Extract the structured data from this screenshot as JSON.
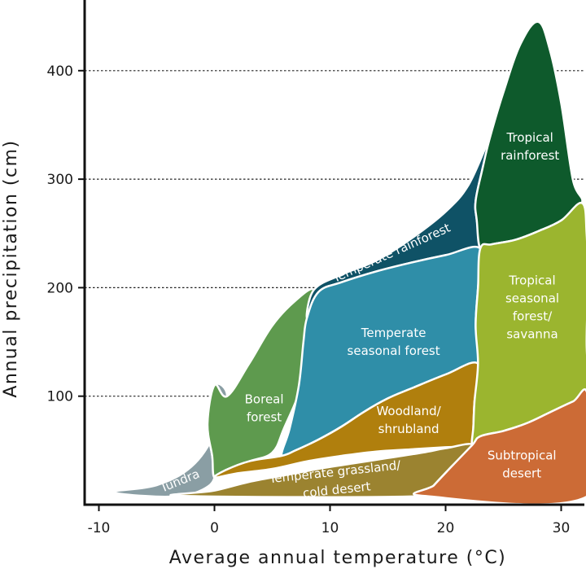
{
  "chart_data": {
    "type": "area",
    "title": "",
    "xlabel": "Average annual temperature (°C)",
    "ylabel": "Annual precipitation (cm)",
    "xlim": [
      -11,
      32
    ],
    "ylim": [
      0,
      460
    ],
    "x_ticks": [
      {
        "value": -10,
        "label": "-10"
      },
      {
        "value": 0,
        "label": "0"
      },
      {
        "value": 10,
        "label": "10"
      },
      {
        "value": 20,
        "label": "20"
      },
      {
        "value": 30,
        "label": "30"
      }
    ],
    "y_ticks": [
      {
        "value": 100,
        "label": "100"
      },
      {
        "value": 200,
        "label": "200"
      },
      {
        "value": 300,
        "label": "300"
      },
      {
        "value": 400,
        "label": "400"
      }
    ],
    "grid": "horizontal dotted at y ticks",
    "regions": [
      {
        "name": "tundra",
        "label": [
          "Tundra"
        ],
        "color": "#8a9ea4",
        "label_pos": [
          -3,
          22
        ],
        "label_rotate": -22,
        "boundary": [
          [
            -8.7,
            12
          ],
          [
            -5,
            18
          ],
          [
            -2,
            35
          ],
          [
            0,
            65
          ],
          [
            1.1,
            100
          ],
          [
            0,
            110
          ],
          [
            -0.6,
            75
          ],
          [
            -0.2,
            45
          ],
          [
            0,
            25
          ],
          [
            -1,
            14
          ],
          [
            -3,
            8
          ],
          [
            -6,
            8
          ],
          [
            -8.7,
            12
          ]
        ]
      },
      {
        "name": "boreal-forest",
        "label": [
          "Boreal",
          "forest"
        ],
        "color": "#5e9a4e",
        "label_pos": [
          4.3,
          89
        ],
        "label_rotate": 0,
        "boundary": [
          [
            0,
            25
          ],
          [
            -0.2,
            45
          ],
          [
            -0.6,
            75
          ],
          [
            0,
            110
          ],
          [
            1.1,
            100
          ],
          [
            3,
            130
          ],
          [
            5,
            165
          ],
          [
            7,
            188
          ],
          [
            8.6,
            198
          ],
          [
            8.2,
            170
          ],
          [
            7.9,
            150
          ],
          [
            7.5,
            110
          ],
          [
            6,
            70
          ],
          [
            5,
            48
          ],
          [
            3,
            40
          ],
          [
            1,
            32
          ],
          [
            0,
            25
          ]
        ]
      },
      {
        "name": "temperate-rainforest",
        "label": [
          "Temperate rainforest"
        ],
        "color": "#0f5266",
        "label_pos": [
          15.3,
          232
        ],
        "label_rotate": -24,
        "boundary": [
          [
            8.6,
            198
          ],
          [
            11,
            212
          ],
          [
            14,
            225
          ],
          [
            17,
            245
          ],
          [
            20,
            270
          ],
          [
            22,
            295
          ],
          [
            23.8,
            337
          ],
          [
            23.2,
            310
          ],
          [
            22.6,
            280
          ],
          [
            22.7,
            262
          ],
          [
            23,
            236
          ],
          [
            20,
            230
          ],
          [
            17,
            223
          ],
          [
            14,
            215
          ],
          [
            11,
            205
          ],
          [
            9,
            196
          ],
          [
            8,
            172
          ],
          [
            8.6,
            198
          ]
        ]
      },
      {
        "name": "temperate-seasonal-forest",
        "label": [
          "Temperate",
          "seasonal forest"
        ],
        "color": "#2f8ea8",
        "label_pos": [
          15.5,
          150
        ],
        "label_rotate": 0,
        "boundary": [
          [
            8,
            172
          ],
          [
            9,
            196
          ],
          [
            11,
            205
          ],
          [
            14,
            215
          ],
          [
            17,
            223
          ],
          [
            20,
            230
          ],
          [
            23,
            236
          ],
          [
            22.8,
            200
          ],
          [
            22.6,
            165
          ],
          [
            22.8,
            130
          ],
          [
            20,
            120
          ],
          [
            17,
            107
          ],
          [
            15,
            98
          ],
          [
            13,
            86
          ],
          [
            11,
            72
          ],
          [
            9,
            60
          ],
          [
            7,
            50
          ],
          [
            5.8,
            45
          ],
          [
            6.5,
            70
          ],
          [
            7.3,
            110
          ],
          [
            7.7,
            150
          ],
          [
            8,
            172
          ]
        ]
      },
      {
        "name": "woodland-shrubland",
        "label": [
          "Woodland/",
          "shrubland"
        ],
        "color": "#b07f0d",
        "label_pos": [
          16.8,
          78
        ],
        "label_rotate": 0,
        "boundary": [
          [
            0,
            25
          ],
          [
            1,
            32
          ],
          [
            3,
            40
          ],
          [
            5.8,
            45
          ],
          [
            7,
            50
          ],
          [
            9,
            60
          ],
          [
            11,
            72
          ],
          [
            13,
            86
          ],
          [
            15,
            98
          ],
          [
            17,
            107
          ],
          [
            20,
            120
          ],
          [
            22.8,
            130
          ],
          [
            22.5,
            95
          ],
          [
            22.4,
            72
          ],
          [
            22.3,
            55
          ],
          [
            20,
            53
          ],
          [
            17,
            51
          ],
          [
            14,
            49
          ],
          [
            11,
            45
          ],
          [
            8,
            40
          ],
          [
            5,
            33
          ],
          [
            2,
            29
          ],
          [
            0,
            25
          ]
        ]
      },
      {
        "name": "temperate-grassland",
        "label": [
          "Temperate grassland/",
          "cold desert"
        ],
        "color": "#9b8330",
        "label_pos": [
          10.5,
          22
        ],
        "label_rotate": -6,
        "boundary": [
          [
            -2.7,
            8
          ],
          [
            0,
            13
          ],
          [
            3,
            21
          ],
          [
            6,
            27
          ],
          [
            9,
            33
          ],
          [
            12,
            38
          ],
          [
            15,
            43
          ],
          [
            18,
            48
          ],
          [
            20,
            52
          ],
          [
            22.3,
            55
          ],
          [
            20.5,
            35
          ],
          [
            19,
            18
          ],
          [
            18.2,
            8
          ],
          [
            -2.7,
            8
          ]
        ]
      },
      {
        "name": "tropical-rainforest",
        "label": [
          "Tropical",
          "rainforest"
        ],
        "color": "#0e5a2c",
        "label_pos": [
          27.3,
          330
        ],
        "label_rotate": 0,
        "boundary": [
          [
            23.8,
            337
          ],
          [
            25,
            380
          ],
          [
            26.5,
            425
          ],
          [
            28,
            445
          ],
          [
            29,
            420
          ],
          [
            30,
            370
          ],
          [
            31,
            300
          ],
          [
            31.8,
            278
          ],
          [
            30,
            262
          ],
          [
            28,
            252
          ],
          [
            26,
            244
          ],
          [
            24,
            240
          ],
          [
            23,
            236
          ],
          [
            22.7,
            262
          ],
          [
            22.6,
            280
          ],
          [
            23.2,
            310
          ],
          [
            23.8,
            337
          ]
        ]
      },
      {
        "name": "tropical-seasonal-forest",
        "label": [
          "Tropical",
          "seasonal",
          "forest/",
          "savanna"
        ],
        "color": "#9bb52f",
        "label_pos": [
          27.5,
          182
        ],
        "label_rotate": 0,
        "boundary": [
          [
            23,
            236
          ],
          [
            24,
            240
          ],
          [
            26,
            244
          ],
          [
            28,
            252
          ],
          [
            30,
            262
          ],
          [
            31.8,
            278
          ],
          [
            32.2,
            250
          ],
          [
            32.3,
            200
          ],
          [
            32.2,
            150
          ],
          [
            32.3,
            100
          ],
          [
            31,
            95
          ],
          [
            29,
            85
          ],
          [
            27,
            75
          ],
          [
            25,
            68
          ],
          [
            23,
            63
          ],
          [
            22.3,
            55
          ],
          [
            22.4,
            72
          ],
          [
            22.5,
            95
          ],
          [
            22.8,
            130
          ],
          [
            22.6,
            165
          ],
          [
            22.8,
            200
          ],
          [
            23,
            236
          ]
        ]
      },
      {
        "name": "subtropical-desert",
        "label": [
          "Subtropical",
          "desert"
        ],
        "color": "#cc6b36",
        "label_pos": [
          26.6,
          37
        ],
        "label_rotate": 0,
        "boundary": [
          [
            18.2,
            8
          ],
          [
            19,
            18
          ],
          [
            20.5,
            35
          ],
          [
            22.3,
            55
          ],
          [
            23,
            63
          ],
          [
            25,
            68
          ],
          [
            27,
            75
          ],
          [
            29,
            85
          ],
          [
            31,
            95
          ],
          [
            32.3,
            100
          ],
          [
            32.3,
            8
          ],
          [
            18.2,
            8
          ]
        ]
      }
    ]
  }
}
